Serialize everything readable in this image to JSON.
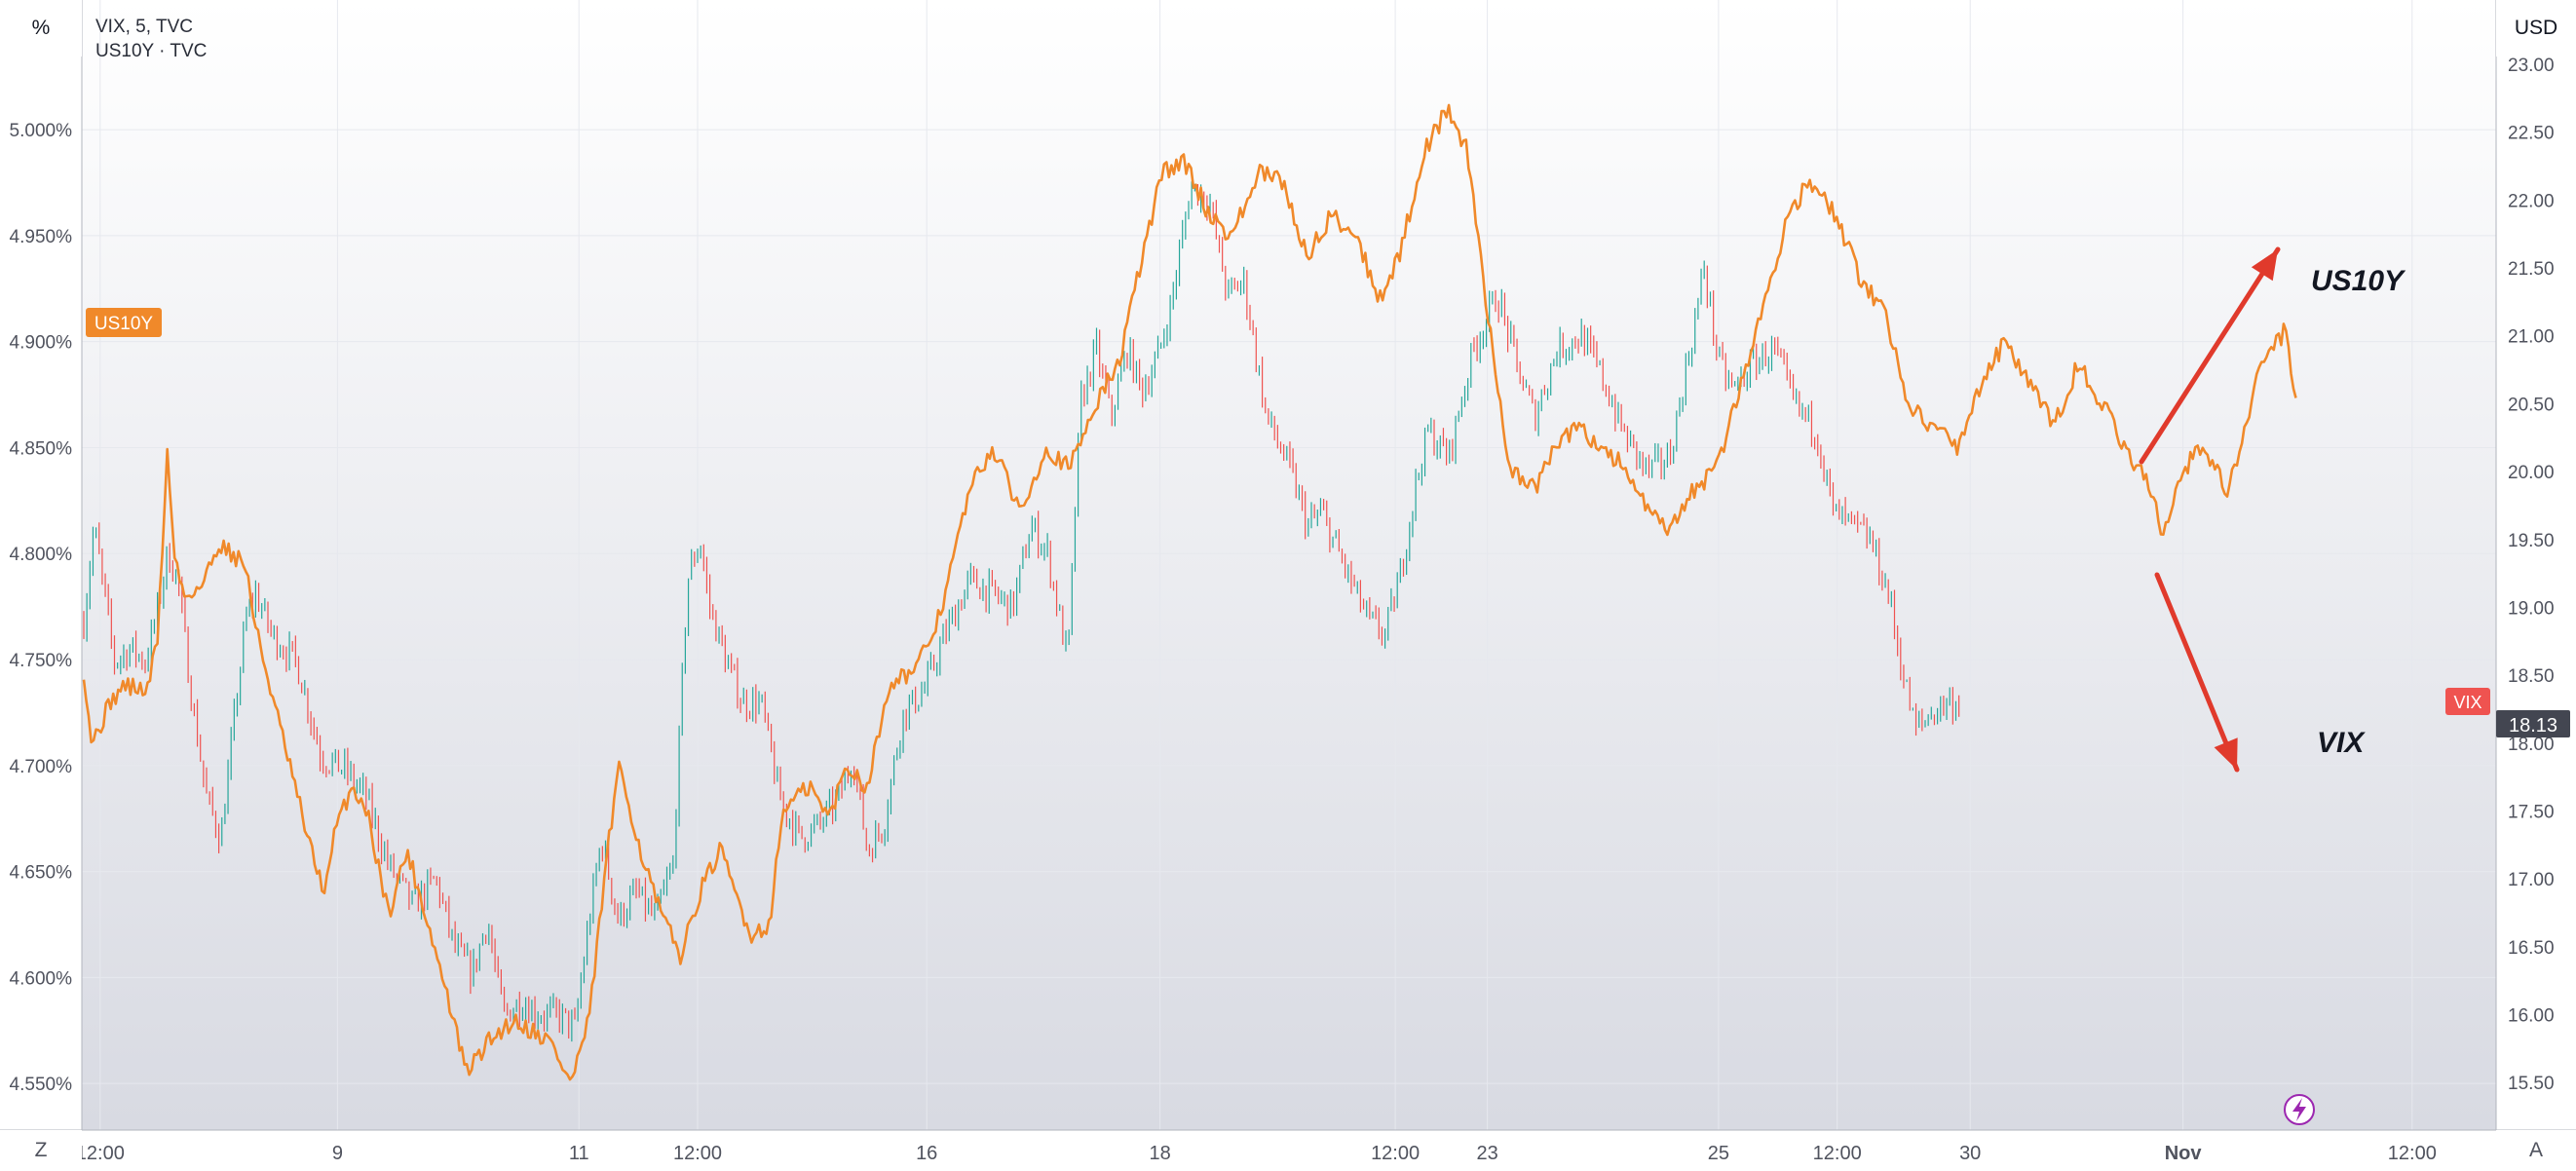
{
  "header": {
    "left_unit": "%",
    "right_unit": "USD",
    "legend_vix": "VIX, 5, TVC",
    "legend_us10y": "US10Y · TVC"
  },
  "footer": {
    "left_button": "Z",
    "right_button": "A"
  },
  "colors": {
    "us10y": "#f0892a",
    "vix_up": "#26a69a",
    "vix_down": "#ef5350",
    "arrow": "#e03a2c",
    "vix_badge": "#ef5350",
    "price_badge": "#434651",
    "lightning": "#9c27b0"
  },
  "chart_data": {
    "type": "line",
    "x": [
      "12:00",
      "9",
      "11",
      "12:00",
      "16",
      "18",
      "12:00",
      "23",
      "25",
      "12:00",
      "30",
      "Nov",
      "12:00"
    ],
    "left_axis": {
      "unit": "%",
      "ticks": [
        "5.000%",
        "4.950%",
        "4.900%",
        "4.850%",
        "4.800%",
        "4.750%",
        "4.700%",
        "4.650%",
        "4.600%",
        "4.550%"
      ],
      "ylim": [
        4.528,
        5.052
      ]
    },
    "right_axis": {
      "unit": "USD",
      "ticks": [
        "23.00",
        "22.50",
        "22.00",
        "21.50",
        "21.00",
        "20.50",
        "20.00",
        "19.50",
        "19.00",
        "18.50",
        "18.00",
        "17.50",
        "17.00",
        "16.50",
        "16.00",
        "15.50"
      ],
      "ylim": [
        15.15,
        23.33
      ]
    },
    "series": [
      {
        "name": "US10Y",
        "axis": "left",
        "style": "line",
        "label": "US10Y",
        "points": [
          [
            0,
            4.745
          ],
          [
            4,
            4.71
          ],
          [
            13,
            4.73
          ],
          [
            20,
            4.738
          ],
          [
            31,
            4.735
          ],
          [
            36,
            4.76
          ],
          [
            41,
            4.85
          ],
          [
            44,
            4.8
          ],
          [
            49,
            4.78
          ],
          [
            58,
            4.785
          ],
          [
            66,
            4.805
          ],
          [
            79,
            4.795
          ],
          [
            84,
            4.765
          ],
          [
            98,
            4.71
          ],
          [
            111,
            4.66
          ],
          [
            118,
            4.64
          ],
          [
            123,
            4.67
          ],
          [
            131,
            4.69
          ],
          [
            138,
            4.68
          ],
          [
            149,
            4.63
          ],
          [
            158,
            4.66
          ],
          [
            167,
            4.63
          ],
          [
            178,
            4.59
          ],
          [
            187,
            4.555
          ],
          [
            198,
            4.57
          ],
          [
            210,
            4.58
          ],
          [
            228,
            4.57
          ],
          [
            238,
            4.55
          ],
          [
            247,
            4.58
          ],
          [
            256,
            4.66
          ],
          [
            262,
            4.7
          ],
          [
            272,
            4.66
          ],
          [
            282,
            4.63
          ],
          [
            292,
            4.61
          ],
          [
            301,
            4.64
          ],
          [
            311,
            4.66
          ],
          [
            326,
            4.62
          ],
          [
            335,
            4.625
          ],
          [
            342,
            4.68
          ],
          [
            355,
            4.69
          ],
          [
            364,
            4.675
          ],
          [
            373,
            4.7
          ],
          [
            383,
            4.69
          ],
          [
            394,
            4.74
          ],
          [
            407,
            4.745
          ],
          [
            418,
            4.77
          ],
          [
            433,
            4.83
          ],
          [
            444,
            4.85
          ],
          [
            458,
            4.82
          ],
          [
            470,
            4.85
          ],
          [
            482,
            4.84
          ],
          [
            494,
            4.87
          ],
          [
            506,
            4.89
          ],
          [
            515,
            4.93
          ],
          [
            527,
            4.98
          ],
          [
            538,
            4.985
          ],
          [
            550,
            4.96
          ],
          [
            561,
            4.95
          ],
          [
            575,
            4.98
          ],
          [
            586,
            4.975
          ],
          [
            598,
            4.94
          ],
          [
            610,
            4.96
          ],
          [
            622,
            4.95
          ],
          [
            633,
            4.92
          ],
          [
            643,
            4.94
          ],
          [
            655,
            4.99
          ],
          [
            667,
            5.01
          ],
          [
            676,
            4.99
          ],
          [
            688,
            4.9
          ],
          [
            697,
            4.84
          ],
          [
            709,
            4.83
          ],
          [
            719,
            4.85
          ],
          [
            730,
            4.86
          ],
          [
            742,
            4.85
          ],
          [
            754,
            4.84
          ],
          [
            764,
            4.82
          ],
          [
            775,
            4.81
          ],
          [
            787,
            4.83
          ],
          [
            798,
            4.84
          ],
          [
            810,
            4.88
          ],
          [
            822,
            4.92
          ],
          [
            833,
            4.96
          ],
          [
            843,
            4.975
          ],
          [
            856,
            4.96
          ],
          [
            868,
            4.93
          ],
          [
            880,
            4.915
          ],
          [
            892,
            4.87
          ],
          [
            904,
            4.86
          ],
          [
            916,
            4.85
          ],
          [
            927,
            4.88
          ],
          [
            939,
            4.9
          ],
          [
            951,
            4.88
          ],
          [
            963,
            4.86
          ],
          [
            975,
            4.89
          ],
          [
            987,
            4.87
          ],
          [
            997,
            4.85
          ],
          [
            1008,
            4.835
          ],
          [
            1016,
            4.81
          ],
          [
            1026,
            4.84
          ],
          [
            1036,
            4.85
          ],
          [
            1048,
            4.83
          ],
          [
            1057,
            4.86
          ],
          [
            1064,
            4.89
          ],
          [
            1076,
            4.905
          ],
          [
            1082,
            4.87
          ]
        ]
      },
      {
        "name": "VIX",
        "axis": "right",
        "style": "candles (5 min)",
        "label": "VIX",
        "last_value": "18.13",
        "points": [
          [
            0,
            18.9
          ],
          [
            5,
            19.6
          ],
          [
            9,
            19.2
          ],
          [
            15,
            18.6
          ],
          [
            23,
            18.7
          ],
          [
            30,
            18.6
          ],
          [
            35,
            18.9
          ],
          [
            41,
            19.4
          ],
          [
            46,
            19.2
          ],
          [
            53,
            18.3
          ],
          [
            60,
            17.6
          ],
          [
            67,
            17.3
          ],
          [
            79,
            18.9
          ],
          [
            84,
            19.1
          ],
          [
            92,
            18.8
          ],
          [
            104,
            18.6
          ],
          [
            116,
            17.9
          ],
          [
            128,
            17.8
          ],
          [
            138,
            17.6
          ],
          [
            149,
            17.1
          ],
          [
            161,
            16.8
          ],
          [
            172,
            17.0
          ],
          [
            181,
            16.5
          ],
          [
            190,
            16.3
          ],
          [
            197,
            16.7
          ],
          [
            205,
            16.0
          ],
          [
            214,
            16.1
          ],
          [
            223,
            16.0
          ],
          [
            232,
            16.0
          ],
          [
            240,
            15.9
          ],
          [
            247,
            16.7
          ],
          [
            253,
            17.3
          ],
          [
            261,
            16.7
          ],
          [
            270,
            16.9
          ],
          [
            279,
            16.7
          ],
          [
            288,
            17.1
          ],
          [
            295,
            19.2
          ],
          [
            301,
            19.5
          ],
          [
            306,
            19.0
          ],
          [
            314,
            18.6
          ],
          [
            322,
            18.3
          ],
          [
            331,
            18.3
          ],
          [
            340,
            17.6
          ],
          [
            350,
            17.3
          ],
          [
            360,
            17.4
          ],
          [
            369,
            17.6
          ],
          [
            376,
            17.9
          ],
          [
            383,
            17.2
          ],
          [
            391,
            17.4
          ],
          [
            400,
            18.2
          ],
          [
            411,
            18.4
          ],
          [
            421,
            18.8
          ],
          [
            433,
            19.2
          ],
          [
            444,
            19.1
          ],
          [
            454,
            19.0
          ],
          [
            463,
            19.6
          ],
          [
            471,
            19.4
          ],
          [
            481,
            18.6
          ],
          [
            487,
            20.5
          ],
          [
            495,
            20.9
          ],
          [
            502,
            20.4
          ],
          [
            510,
            20.9
          ],
          [
            517,
            20.6
          ],
          [
            524,
            20.8
          ],
          [
            531,
            21.2
          ],
          [
            541,
            22.1
          ],
          [
            550,
            22.0
          ],
          [
            559,
            21.3
          ],
          [
            567,
            21.4
          ],
          [
            578,
            20.4
          ],
          [
            590,
            20.0
          ],
          [
            598,
            19.6
          ],
          [
            605,
            19.7
          ],
          [
            616,
            19.3
          ],
          [
            628,
            18.9
          ],
          [
            636,
            18.8
          ],
          [
            643,
            19.2
          ],
          [
            651,
            19.9
          ],
          [
            657,
            20.3
          ],
          [
            667,
            20.1
          ],
          [
            679,
            20.9
          ],
          [
            691,
            21.3
          ],
          [
            700,
            20.8
          ],
          [
            709,
            20.4
          ],
          [
            720,
            20.9
          ],
          [
            732,
            21.0
          ],
          [
            742,
            20.7
          ],
          [
            752,
            20.3
          ],
          [
            764,
            20.0
          ],
          [
            775,
            20.1
          ],
          [
            785,
            20.9
          ],
          [
            792,
            21.5
          ],
          [
            799,
            20.8
          ],
          [
            806,
            20.6
          ],
          [
            816,
            20.8
          ],
          [
            826,
            20.9
          ],
          [
            836,
            20.5
          ],
          [
            847,
            20.3
          ],
          [
            855,
            19.7
          ],
          [
            864,
            19.6
          ],
          [
            873,
            19.5
          ],
          [
            882,
            19.1
          ],
          [
            888,
            18.6
          ],
          [
            895,
            18.1
          ],
          [
            902,
            18.2
          ],
          [
            910,
            18.3
          ],
          [
            917,
            18.3
          ]
        ]
      }
    ],
    "annotations": [
      {
        "label": "US10Y",
        "direction": "up"
      },
      {
        "label": "VIX",
        "direction": "down"
      }
    ],
    "grid": true
  }
}
